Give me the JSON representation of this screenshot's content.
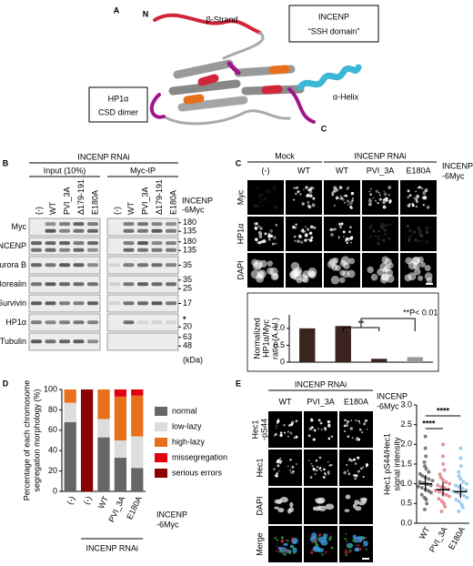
{
  "panel_a": {
    "letter": "A",
    "n_terminus": "N",
    "c_terminus": "C",
    "strand_label": "β-Strand",
    "helix_label": "α-Helix",
    "incenp_box": [
      "INCENP",
      "“SSH domain”"
    ],
    "hp1_box": [
      "HP1α",
      "CSD dimer"
    ],
    "strand_color": "#d0263a",
    "helix_color": "#3ab8d6"
  },
  "panel_b": {
    "letter": "B",
    "header": "INCENP RNAi",
    "groups": [
      {
        "label": "Input (10%)",
        "lanes": [
          "(-)",
          "WT",
          "PVI_3A",
          "Δ179-191",
          "E180A"
        ],
        "lane_colors": [
          "#000000",
          "#000000",
          "#000000",
          "#000000",
          "#000000"
        ]
      },
      {
        "label": "Myc-IP",
        "lanes": [
          "(-)",
          "WT",
          "PVI_3A",
          "Δ179-191",
          "E180A"
        ],
        "lane_colors": [
          "#000000",
          "#000000",
          "#d0263a",
          "#3a9ad9",
          "#3a9ad9"
        ]
      }
    ],
    "construct": [
      "INCENP",
      "-6Myc"
    ],
    "rows": [
      {
        "name": "Myc",
        "markers": [
          180,
          135
        ]
      },
      {
        "name": "INCENP",
        "markers": [
          180,
          135
        ]
      },
      {
        "name": "Aurora B",
        "markers": [
          35
        ]
      },
      {
        "name": "Borealin",
        "markers": [
          35,
          25
        ]
      },
      {
        "name": "Survivin",
        "markers": [
          17
        ]
      },
      {
        "name": "HP1α",
        "markers": [
          "*",
          20
        ]
      },
      {
        "name": "Tubulin",
        "markers": [
          63,
          48
        ]
      }
    ],
    "unit": "(kDa)"
  },
  "panel_c": {
    "letter": "C",
    "groups": [
      {
        "label": "Mock",
        "lanes": [
          "(-)",
          "WT"
        ],
        "lane_colors": [
          "#000000",
          "#000000"
        ]
      },
      {
        "label": "INCENP RNAi",
        "lanes": [
          "WT",
          "PVI_3A",
          "E180A"
        ],
        "lane_colors": [
          "#000000",
          "#d0263a",
          "#3a9ad9"
        ]
      }
    ],
    "construct": [
      "INCENP",
      "-6Myc"
    ],
    "rows": [
      "Myc",
      "HP1α",
      "DAPI"
    ]
  },
  "panel_d": {
    "letter": "D",
    "construct": [
      "INCENP",
      "-6Myc"
    ],
    "group_label": "INCENP RNAi"
  },
  "panel_e": {
    "letter": "E",
    "header": "INCENP RNAi",
    "lanes": [
      "WT",
      "PVI_3A",
      "E180A"
    ],
    "lane_colors": [
      "#000000",
      "#d0263a",
      "#3a9ad9"
    ],
    "construct": [
      "INCENP",
      "-6Myc"
    ],
    "rows": [
      {
        "lines": [
          "Hec1",
          "-pS44"
        ],
        "color": "#2a9d3a"
      },
      {
        "lines": [
          "Hec1"
        ],
        "color": "#d0263a"
      },
      {
        "lines": [
          "DAPI"
        ],
        "color": "#3a9ad9"
      },
      {
        "lines": [
          "Merge"
        ],
        "color": "#000000"
      }
    ]
  },
  "chart_data": [
    {
      "type": "bar",
      "ylabel": [
        "Normalized",
        "HP1α/Myc",
        "ratio (A. U.)"
      ],
      "categories": [
        null,
        null,
        null,
        null
      ],
      "values": [
        1.0,
        1.07,
        0.1,
        0.15
      ],
      "colors": [
        "#3b2320",
        "#3b2320",
        "#3b2320",
        "#9a9a9a"
      ],
      "ylim": [
        0,
        1.4
      ],
      "yticks": [
        0,
        0.5,
        {
          "value": 1,
          "label": "1.0"
        }
      ],
      "annotations": [
        "**",
        "**P< 0.01"
      ]
    },
    {
      "type": "stacked_bar",
      "ylabel": [
        "Percentage of each chromosome",
        "segregation morphology (%)"
      ],
      "categories": [
        "(-)",
        "(-)",
        "WT",
        "PVI_3A",
        "E180A"
      ],
      "category_colors": [
        "#000000",
        "#000000",
        "#000000",
        "#d0263a",
        "#3a9ad9"
      ],
      "ylim": [
        0,
        100
      ],
      "yticks": [
        0,
        20,
        40,
        60,
        80,
        100
      ],
      "legend": "right",
      "series": [
        {
          "name": "normal",
          "color": "#666666",
          "values": [
            68,
            0,
            53,
            33,
            23
          ]
        },
        {
          "name": "low-lazy",
          "color": "#dddddd",
          "values": [
            19,
            0,
            18,
            17,
            31
          ]
        },
        {
          "name": "high-lazy",
          "color": "#e8701a",
          "values": [
            13,
            0,
            29,
            43,
            40
          ]
        },
        {
          "name": "missegregation",
          "color": "#e00010",
          "values": [
            0,
            0,
            0,
            7,
            6
          ]
        },
        {
          "name": "serious errors",
          "color": "#8b0000",
          "values": [
            0,
            100,
            0,
            0,
            0
          ]
        }
      ]
    },
    {
      "type": "strip",
      "ylabel": [
        "Hec1 pS44/Hec1",
        "signal intensity"
      ],
      "categories": [
        "WT",
        "PVI_3A",
        "E180A"
      ],
      "colors": [
        "#000000",
        "#d0263a",
        "#3a9ad9"
      ],
      "values": [
        [
          0.35,
          0.5,
          0.6,
          0.65,
          0.72,
          0.78,
          0.82,
          0.86,
          0.9,
          0.93,
          0.96,
          0.99,
          1.02,
          1.05,
          1.08,
          1.12,
          1.16,
          1.2,
          1.25,
          1.3,
          1.38,
          1.45,
          1.55,
          1.7,
          1.9,
          2.2
        ],
        [
          0.3,
          0.42,
          0.5,
          0.56,
          0.62,
          0.68,
          0.72,
          0.76,
          0.8,
          0.83,
          0.86,
          0.89,
          0.92,
          0.96,
          1.0,
          1.04,
          1.1,
          1.16,
          1.24,
          1.35,
          1.5,
          1.7,
          2.0
        ],
        [
          0.3,
          0.4,
          0.48,
          0.55,
          0.6,
          0.65,
          0.7,
          0.74,
          0.78,
          0.81,
          0.84,
          0.88,
          0.92,
          0.96,
          1.0,
          1.05,
          1.12,
          1.2,
          1.3,
          1.45,
          1.65,
          1.9
        ]
      ],
      "medians": [
        1.0,
        0.85,
        0.8
      ],
      "q1": [
        0.8,
        0.68,
        0.64
      ],
      "q3": [
        1.22,
        1.05,
        1.0
      ],
      "ylim": [
        0,
        3
      ],
      "yticks": [
        {
          "value": 0,
          "label": "0.0"
        },
        {
          "value": 0.5,
          "label": "0.5"
        },
        {
          "value": 1,
          "label": "1.0"
        },
        {
          "value": 1.5,
          "label": "1.5"
        },
        {
          "value": 2,
          "label": "2.0"
        },
        {
          "value": 2.5,
          "label": "2.5"
        },
        {
          "value": 3,
          "label": "3.0"
        }
      ],
      "annotations": [
        "****",
        "****"
      ]
    }
  ]
}
